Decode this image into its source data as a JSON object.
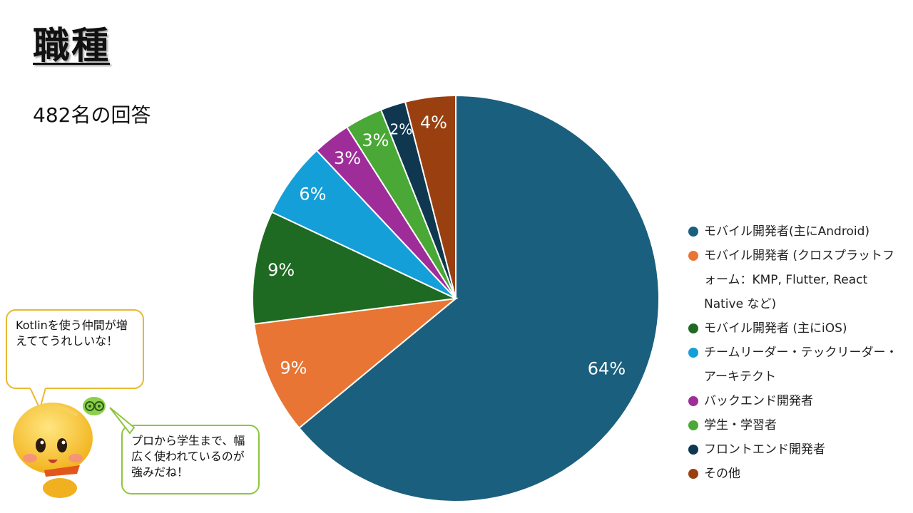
{
  "title": "職種",
  "subtitle": "482名の回答",
  "chart_data": {
    "type": "pie",
    "title": "職種",
    "subtitle": "482名の回答",
    "slices": [
      {
        "label": "モバイル開発者(主にAndroid)",
        "value": 64,
        "color": "#1b5f7e"
      },
      {
        "label": "モバイル開発者 (クロスプラットフォーム：KMP, Flutter, React Native など)",
        "value": 9,
        "color": "#e87533"
      },
      {
        "label": "モバイル開発者 (主にiOS)",
        "value": 9,
        "color": "#1e6a22"
      },
      {
        "label": "チームリーダー・テックリーダー・アーキテクト",
        "value": 6,
        "color": "#149fd8"
      },
      {
        "label": "バックエンド開発者",
        "value": 3,
        "color": "#9e2d9a"
      },
      {
        "label": "学生・学習者",
        "value": 3,
        "color": "#4aa836"
      },
      {
        "label": "フロントエンド開発者",
        "value": 2,
        "color": "#0f3850"
      },
      {
        "label": "その他",
        "value": 4,
        "color": "#9a4010"
      }
    ],
    "value_suffix": "%",
    "legend_position": "right"
  },
  "legend": {
    "items": [
      {
        "label": "モバイル開発者(主にAndroid)",
        "color": "#1b5f7e"
      },
      {
        "label": "モバイル開発者 (クロスプラットフォーム：KMP, Flutter, React Native など)",
        "color": "#e87533"
      },
      {
        "label": "モバイル開発者 (主にiOS)",
        "color": "#1e6a22"
      },
      {
        "label": "チームリーダー・テックリーダー・アーキテクト",
        "color": "#149fd8"
      },
      {
        "label": "バックエンド開発者",
        "color": "#9e2d9a"
      },
      {
        "label": "学生・学習者",
        "color": "#4aa836"
      },
      {
        "label": "フロントエンド開発者",
        "color": "#0f3850"
      },
      {
        "label": "その他",
        "color": "#9a4010"
      }
    ]
  },
  "bubbles": {
    "first": "Kotlinを使う仲間が増えててうれしいな！",
    "second": "プロから学生まで、幅広く使われているのが強みだね！",
    "first_border": "#e8b830",
    "second_border": "#8dc63f"
  },
  "icons": {
    "mascot": "mascot-character-icon",
    "mascot_sidekick": "green-sidekick-icon"
  }
}
